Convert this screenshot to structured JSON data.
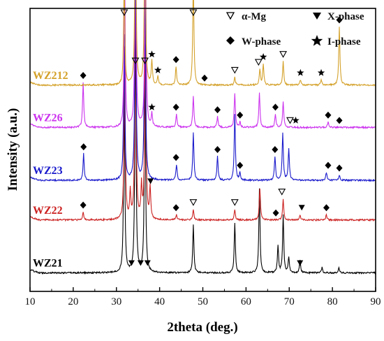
{
  "chart_data": {
    "type": "line",
    "title": "",
    "xlabel": "2theta (deg.)",
    "ylabel": "Intensity (a.u.)",
    "xlim": [
      10,
      90
    ],
    "xticks": [
      10,
      20,
      30,
      40,
      50,
      60,
      70,
      80,
      90
    ],
    "y_ticks_shown": false,
    "grid": false,
    "legend": {
      "placement": "top-right",
      "entries": [
        {
          "symbol": "open-triangle-down",
          "label": "α-Mg"
        },
        {
          "symbol": "filled-triangle-down",
          "label": "X-phase"
        },
        {
          "symbol": "diamond",
          "label": "W-phase"
        },
        {
          "symbol": "star",
          "label": "I-phase"
        }
      ]
    },
    "series": [
      {
        "name": "WZ21",
        "color": "#000000",
        "baseline": 0.05,
        "peaks": [
          [
            31.8,
            0.72
          ],
          [
            34.4,
            0.95
          ],
          [
            36.6,
            0.8
          ],
          [
            47.8,
            0.18
          ],
          [
            57.4,
            0.19
          ],
          [
            63.1,
            0.32
          ],
          [
            67.4,
            0.1
          ],
          [
            68.6,
            0.22
          ],
          [
            69.9,
            0.06
          ],
          [
            72.5,
            0.05
          ],
          [
            77.6,
            0.02
          ],
          [
            81.5,
            0.02
          ]
        ],
        "markers": [
          {
            "x": 33.5,
            "type": "filled-triangle-down"
          },
          {
            "x": 35.6,
            "type": "filled-triangle-down"
          },
          {
            "x": 37.2,
            "type": "filled-triangle-down"
          },
          {
            "x": 72.5,
            "type": "filled-triangle-down"
          }
        ]
      },
      {
        "name": "WZ22",
        "color": "#cc2222",
        "baseline": 0.25,
        "peaks": [
          [
            22.3,
            0.03
          ],
          [
            31.9,
            0.65
          ],
          [
            33.2,
            0.1
          ],
          [
            34.4,
            0.9
          ],
          [
            35.8,
            0.12
          ],
          [
            36.7,
            0.78
          ],
          [
            37.8,
            0.12
          ],
          [
            43.9,
            0.02
          ],
          [
            47.8,
            0.04
          ],
          [
            57.4,
            0.04
          ],
          [
            63.2,
            0.12
          ],
          [
            68.6,
            0.08
          ],
          [
            72.5,
            0.02
          ],
          [
            78.6,
            0.02
          ]
        ],
        "markers": [
          {
            "x": 22.3,
            "type": "diamond"
          },
          {
            "x": 37.9,
            "type": "filled-triangle-down"
          },
          {
            "x": 43.8,
            "type": "diamond"
          },
          {
            "x": 47.8,
            "type": "open-triangle-down"
          },
          {
            "x": 57.4,
            "type": "open-triangle-down"
          },
          {
            "x": 66.9,
            "type": "diamond"
          },
          {
            "x": 68.3,
            "type": "open-triangle-down"
          },
          {
            "x": 72.9,
            "type": "filled-triangle-down"
          },
          {
            "x": 78.6,
            "type": "diamond"
          }
        ]
      },
      {
        "name": "WZ23",
        "color": "#1a1acc",
        "baseline": 0.4,
        "peaks": [
          [
            22.4,
            0.1
          ],
          [
            31.8,
            0.55
          ],
          [
            34.4,
            0.9
          ],
          [
            36.6,
            0.8
          ],
          [
            43.9,
            0.06
          ],
          [
            47.8,
            0.18
          ],
          [
            53.4,
            0.09
          ],
          [
            57.4,
            0.25
          ],
          [
            58.6,
            0.03
          ],
          [
            66.7,
            0.09
          ],
          [
            68.5,
            0.18
          ],
          [
            69.9,
            0.12
          ],
          [
            78.6,
            0.03
          ],
          [
            81.6,
            0.02
          ]
        ],
        "markers": [
          {
            "x": 22.4,
            "type": "diamond"
          },
          {
            "x": 43.8,
            "type": "diamond"
          },
          {
            "x": 53.4,
            "type": "diamond"
          },
          {
            "x": 58.6,
            "type": "diamond"
          },
          {
            "x": 66.7,
            "type": "diamond"
          },
          {
            "x": 79.0,
            "type": "diamond"
          },
          {
            "x": 81.6,
            "type": "diamond"
          }
        ]
      },
      {
        "name": "WZ26",
        "color": "#cc33ee",
        "baseline": 0.6,
        "peaks": [
          [
            22.3,
            0.17
          ],
          [
            31.9,
            0.6
          ],
          [
            34.4,
            0.9
          ],
          [
            36.7,
            0.8
          ],
          [
            38.2,
            0.05
          ],
          [
            43.9,
            0.05
          ],
          [
            47.8,
            0.12
          ],
          [
            53.4,
            0.04
          ],
          [
            57.4,
            0.13
          ],
          [
            58.6,
            0.02
          ],
          [
            63.1,
            0.13
          ],
          [
            66.8,
            0.05
          ],
          [
            68.6,
            0.1
          ],
          [
            79.0,
            0.02
          ]
        ],
        "markers": [
          {
            "x": 22.3,
            "type": "diamond"
          },
          {
            "x": 38.2,
            "type": "star"
          },
          {
            "x": 43.8,
            "type": "diamond"
          },
          {
            "x": 53.4,
            "type": "diamond"
          },
          {
            "x": 58.6,
            "type": "diamond"
          },
          {
            "x": 66.8,
            "type": "diamond"
          },
          {
            "x": 70.2,
            "type": "open-triangle-down"
          },
          {
            "x": 71.5,
            "type": "star"
          },
          {
            "x": 79.0,
            "type": "diamond"
          },
          {
            "x": 81.6,
            "type": "diamond"
          }
        ]
      },
      {
        "name": "WZ212",
        "color": "#d4a12a",
        "baseline": 0.76,
        "peaks": [
          [
            31.8,
            0.4
          ],
          [
            34.4,
            0.78
          ],
          [
            36.6,
            0.7
          ],
          [
            38.2,
            0.09
          ],
          [
            39.6,
            0.03
          ],
          [
            43.8,
            0.07
          ],
          [
            47.8,
            0.4
          ],
          [
            57.4,
            0.03
          ],
          [
            63.2,
            0.06
          ],
          [
            64.0,
            0.08
          ],
          [
            68.6,
            0.09
          ],
          [
            72.6,
            0.02
          ],
          [
            77.4,
            0.02
          ],
          [
            81.6,
            0.22
          ]
        ],
        "markers": [
          {
            "x": 31.8,
            "type": "open-triangle-down"
          },
          {
            "x": 34.4,
            "type": "open-triangle-down"
          },
          {
            "x": 36.6,
            "type": "open-triangle-down"
          },
          {
            "x": 38.2,
            "type": "star"
          },
          {
            "x": 39.6,
            "type": "star"
          },
          {
            "x": 43.8,
            "type": "diamond"
          },
          {
            "x": 47.8,
            "type": "open-triangle-down"
          },
          {
            "x": 50.4,
            "type": "diamond"
          },
          {
            "x": 57.4,
            "type": "open-triangle-down"
          },
          {
            "x": 62.9,
            "type": "open-triangle-down"
          },
          {
            "x": 64.0,
            "type": "star"
          },
          {
            "x": 68.6,
            "type": "open-triangle-down"
          },
          {
            "x": 72.6,
            "type": "star"
          },
          {
            "x": 77.4,
            "type": "star"
          },
          {
            "x": 81.6,
            "type": "diamond"
          }
        ]
      }
    ]
  }
}
